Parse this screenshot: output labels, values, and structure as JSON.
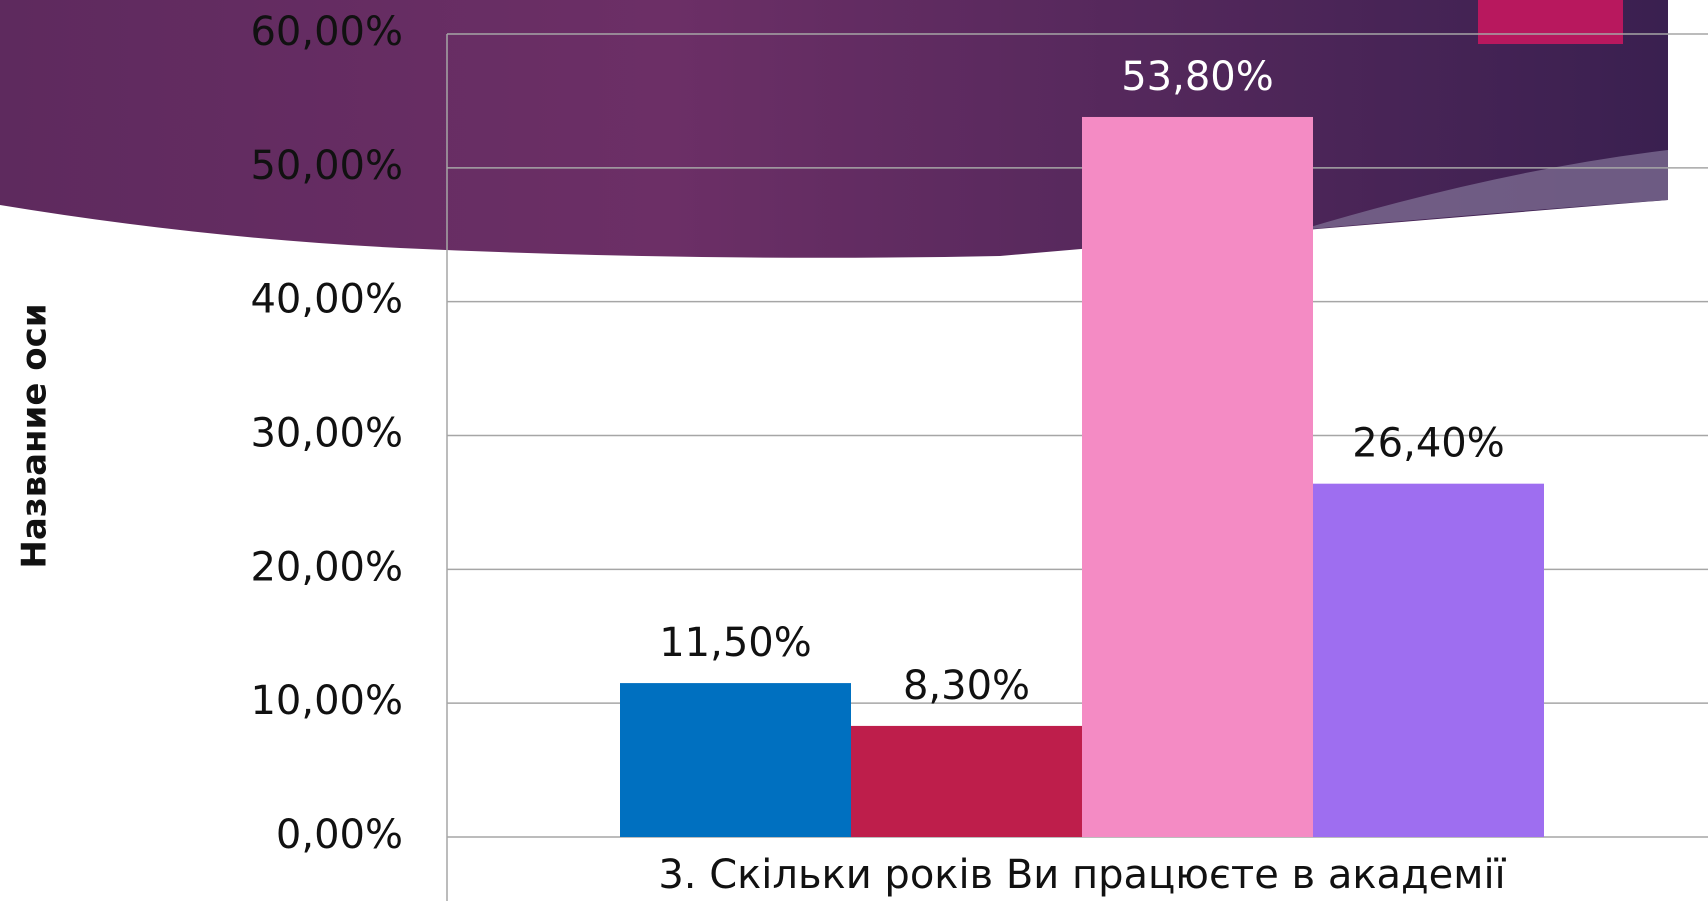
{
  "chart_data": {
    "type": "bar",
    "y_axis_title": "Название оси",
    "categories": [
      "3. Скільки років Ви працюєте в академії"
    ],
    "series": [
      {
        "color": "#0070c0",
        "values": [
          11.5
        ],
        "value_labels": [
          "11,50%"
        ]
      },
      {
        "color": "#be1e4b",
        "values": [
          8.3
        ],
        "value_labels": [
          "8,30%"
        ]
      },
      {
        "color": "#f48bc4",
        "values": [
          53.8
        ],
        "value_labels": [
          "53,80%"
        ]
      },
      {
        "color": "#9e6ef0",
        "values": [
          26.4
        ],
        "value_labels": [
          "26,40%"
        ]
      }
    ],
    "ylim": [
      0,
      60
    ],
    "yticks": [
      {
        "value": 0,
        "label": "0,00%"
      },
      {
        "value": 10,
        "label": "10,00%"
      },
      {
        "value": 20,
        "label": "20,00%"
      },
      {
        "value": 30,
        "label": "30,00%"
      },
      {
        "value": 40,
        "label": "40,00%"
      },
      {
        "value": 50,
        "label": "50,00%"
      },
      {
        "value": 60,
        "label": "60,00%"
      }
    ],
    "grid": true
  }
}
